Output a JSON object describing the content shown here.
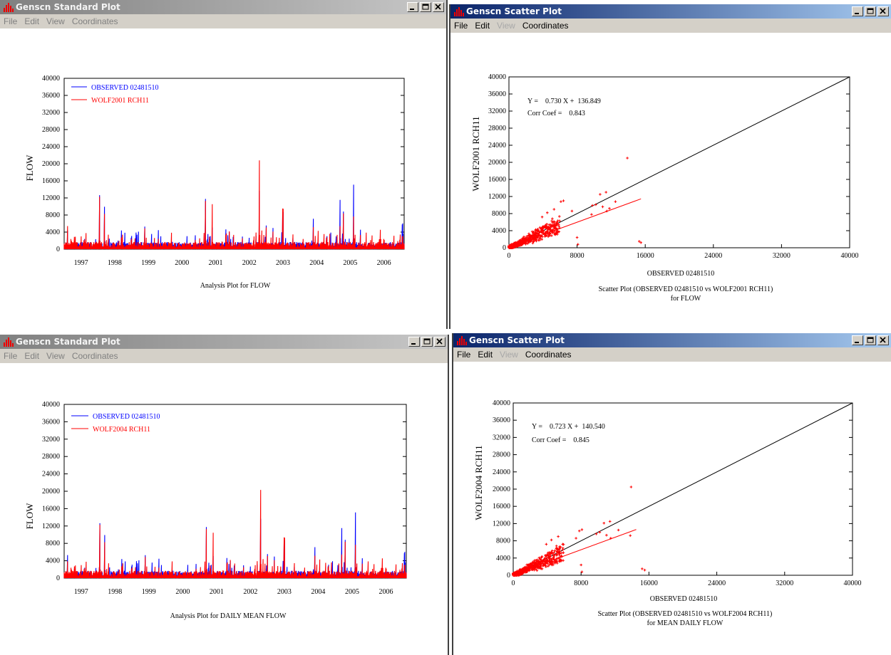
{
  "windows": [
    {
      "title": "Genscn Standard Plot",
      "active": false,
      "menu": [
        {
          "label": "File",
          "enabled": true
        },
        {
          "label": "Edit",
          "enabled": true
        },
        {
          "label": "View",
          "enabled": true
        },
        {
          "label": "Coordinates",
          "enabled": true
        }
      ],
      "plot": {
        "ylabel": "FLOW",
        "caption": "Analysis Plot for FLOW",
        "legend": [
          "OBSERVED 02481510",
          "WOLF2001 RCH11"
        ]
      }
    },
    {
      "title": "Genscn Scatter Plot",
      "active": true,
      "menu": [
        {
          "label": "File",
          "enabled": true
        },
        {
          "label": "Edit",
          "enabled": true
        },
        {
          "label": "View",
          "enabled": false
        },
        {
          "label": "Coordinates",
          "enabled": true
        }
      ],
      "plot": {
        "ylabel": "WOLF2001 RCH11",
        "xlabel": "OBSERVED 02481510",
        "caption_line1": "Scatter Plot (OBSERVED 02481510 vs WOLF2001 RCH11)",
        "caption_line2": "for  FLOW",
        "eq_line1": "Y =    0.730 X +  136.849",
        "eq_line2": "Corr Coef =    0.843"
      }
    },
    {
      "title": "Genscn Standard Plot",
      "active": false,
      "menu": [
        {
          "label": "File",
          "enabled": true
        },
        {
          "label": "Edit",
          "enabled": true
        },
        {
          "label": "View",
          "enabled": true
        },
        {
          "label": "Coordinates",
          "enabled": true
        }
      ],
      "plot": {
        "ylabel": "FLOW",
        "caption": "Analysis Plot for DAILY MEAN FLOW",
        "legend": [
          "OBSERVED 02481510",
          "WOLF2004 RCH11"
        ]
      }
    },
    {
      "title": "Genscn Scatter Plot",
      "active": true,
      "menu": [
        {
          "label": "File",
          "enabled": true
        },
        {
          "label": "Edit",
          "enabled": true
        },
        {
          "label": "View",
          "enabled": false
        },
        {
          "label": "Coordinates",
          "enabled": true
        }
      ],
      "plot": {
        "ylabel": "WOLF2004 RCH11",
        "xlabel": "OBSERVED 02481510",
        "caption_line1": "Scatter Plot (OBSERVED 02481510 vs WOLF2004 RCH11)",
        "caption_line2": "for MEAN DAILY FLOW",
        "eq_line1": "Y =    0.723 X +  140.540",
        "eq_line2": "Corr Coef =    0.845"
      }
    }
  ],
  "colors": {
    "observed": "#0000ff",
    "simulated": "#ff0000",
    "line": "#000000"
  },
  "chart_data": [
    {
      "type": "line",
      "ylim": [
        0,
        40000
      ],
      "yticks": [
        0,
        4000,
        8000,
        12000,
        16000,
        20000,
        24000,
        28000,
        32000,
        36000,
        40000
      ],
      "xticks": [
        "1997",
        "1998",
        "1999",
        "2000",
        "2001",
        "2002",
        "2003",
        "2004",
        "2005",
        "2006"
      ],
      "xlim": [
        1996.5,
        2006.6
      ],
      "series": [
        {
          "name": "OBSERVED 02481510",
          "peaks": [
            [
              1996.6,
              4500
            ],
            [
              1996.8,
              2200
            ],
            [
              1997.1,
              3000
            ],
            [
              1997.3,
              1800
            ],
            [
              1997.55,
              14200
            ],
            [
              1997.7,
              10800
            ],
            [
              1998.2,
              4800
            ],
            [
              1998.5,
              3800
            ],
            [
              1998.9,
              6300
            ],
            [
              1999.3,
              2000
            ],
            [
              1999.8,
              1500
            ],
            [
              2000.4,
              3800
            ],
            [
              2000.7,
              12300
            ],
            [
              2000.9,
              5200
            ],
            [
              2001.3,
              5500
            ],
            [
              2001.8,
              3500
            ],
            [
              2002.2,
              3200
            ],
            [
              2002.3,
              13800
            ],
            [
              2002.5,
              6000
            ],
            [
              2002.7,
              5800
            ],
            [
              2003.0,
              11500
            ],
            [
              2003.3,
              3000
            ],
            [
              2003.6,
              1600
            ],
            [
              2003.9,
              7600
            ],
            [
              2004.3,
              3800
            ],
            [
              2004.7,
              13600
            ],
            [
              2004.8,
              10000
            ],
            [
              2005.1,
              15400
            ],
            [
              2005.3,
              4800
            ],
            [
              2005.6,
              1600
            ],
            [
              2006.0,
              1800
            ],
            [
              2006.3,
              1400
            ],
            [
              2006.55,
              7800
            ]
          ]
        },
        {
          "name": "WOLF2001 RCH11",
          "peaks": [
            [
              1996.6,
              5600
            ],
            [
              1996.8,
              3200
            ],
            [
              1997.1,
              2800
            ],
            [
              1997.3,
              2100
            ],
            [
              1997.55,
              13800
            ],
            [
              1997.7,
              9000
            ],
            [
              1998.2,
              3000
            ],
            [
              1998.5,
              3000
            ],
            [
              1998.9,
              5800
            ],
            [
              1999.3,
              2500
            ],
            [
              1999.8,
              1500
            ],
            [
              2000.4,
              2500
            ],
            [
              2000.7,
              11800
            ],
            [
              2000.9,
              10800
            ],
            [
              2001.3,
              4000
            ],
            [
              2001.8,
              3000
            ],
            [
              2002.2,
              4000
            ],
            [
              2002.3,
              21000
            ],
            [
              2002.5,
              5500
            ],
            [
              2002.7,
              4800
            ],
            [
              2003.0,
              12500
            ],
            [
              2003.3,
              4000
            ],
            [
              2003.6,
              2500
            ],
            [
              2003.9,
              5500
            ],
            [
              2004.3,
              3500
            ],
            [
              2004.7,
              6400
            ],
            [
              2004.8,
              9500
            ],
            [
              2005.1,
              7800
            ],
            [
              2005.3,
              3500
            ],
            [
              2005.6,
              2500
            ],
            [
              2006.0,
              3000
            ],
            [
              2006.3,
              3500
            ],
            [
              2006.55,
              4000
            ]
          ]
        }
      ]
    },
    {
      "type": "scatter",
      "xlim": [
        0,
        40000
      ],
      "ylim": [
        0,
        40000
      ],
      "xticks": [
        0,
        8000,
        16000,
        24000,
        32000,
        40000
      ],
      "yticks": [
        0,
        4000,
        8000,
        12000,
        16000,
        20000,
        24000,
        28000,
        32000,
        36000,
        40000
      ],
      "regression": {
        "slope": 0.73,
        "intercept": 136.849,
        "xmax": 15500
      },
      "outliers": [
        [
          13900,
          21000
        ],
        [
          15500,
          1200
        ],
        [
          15300,
          1500
        ],
        [
          11400,
          13000
        ],
        [
          10700,
          12500
        ],
        [
          6100,
          10800
        ],
        [
          6400,
          11000
        ],
        [
          8100,
          800
        ],
        [
          8000,
          2400
        ],
        [
          9800,
          9900
        ],
        [
          11500,
          8600
        ],
        [
          11800,
          9200
        ],
        [
          9700,
          7800
        ],
        [
          10200,
          10100
        ],
        [
          12500,
          10800
        ],
        [
          11000,
          9600
        ],
        [
          5300,
          9000
        ],
        [
          5100,
          6800
        ],
        [
          4500,
          8200
        ],
        [
          3900,
          7200
        ],
        [
          2800,
          1100
        ],
        [
          7400,
          8600
        ]
      ]
    },
    {
      "type": "line",
      "ylim": [
        0,
        40000
      ],
      "yticks": [
        0,
        4000,
        8000,
        12000,
        16000,
        20000,
        24000,
        28000,
        32000,
        36000,
        40000
      ],
      "xticks": [
        "1997",
        "1998",
        "1999",
        "2000",
        "2001",
        "2002",
        "2003",
        "2004",
        "2005",
        "2006"
      ],
      "xlim": [
        1996.5,
        2006.6
      ],
      "series": [
        {
          "name": "OBSERVED 02481510",
          "peaks": [
            [
              1996.6,
              5500
            ],
            [
              1996.8,
              2400
            ],
            [
              1997.1,
              3000
            ],
            [
              1997.3,
              1800
            ],
            [
              1997.55,
              14200
            ],
            [
              1997.7,
              10800
            ],
            [
              1998.2,
              4800
            ],
            [
              1998.5,
              3800
            ],
            [
              1998.9,
              6300
            ],
            [
              1999.3,
              2000
            ],
            [
              1999.8,
              1500
            ],
            [
              2000.4,
              3800
            ],
            [
              2000.7,
              12300
            ],
            [
              2000.9,
              5200
            ],
            [
              2001.3,
              5500
            ],
            [
              2001.8,
              3500
            ],
            [
              2002.2,
              3200
            ],
            [
              2002.3,
              13800
            ],
            [
              2002.5,
              6000
            ],
            [
              2002.7,
              5800
            ],
            [
              2003.0,
              11500
            ],
            [
              2003.3,
              3000
            ],
            [
              2003.6,
              1600
            ],
            [
              2003.9,
              7600
            ],
            [
              2004.3,
              3800
            ],
            [
              2004.7,
              13600
            ],
            [
              2004.8,
              10000
            ],
            [
              2005.1,
              15400
            ],
            [
              2005.3,
              4800
            ],
            [
              2005.6,
              1600
            ],
            [
              2006.0,
              1800
            ],
            [
              2006.3,
              1400
            ],
            [
              2006.55,
              7800
            ]
          ]
        },
        {
          "name": "WOLF2004 RCH11",
          "peaks": [
            [
              1996.6,
              4000
            ],
            [
              1996.8,
              3000
            ],
            [
              1997.1,
              2800
            ],
            [
              1997.3,
              2100
            ],
            [
              1997.55,
              13800
            ],
            [
              1997.7,
              9000
            ],
            [
              1998.2,
              3000
            ],
            [
              1998.5,
              3000
            ],
            [
              1998.9,
              5800
            ],
            [
              1999.3,
              2500
            ],
            [
              1999.8,
              1500
            ],
            [
              2000.4,
              2500
            ],
            [
              2000.7,
              11800
            ],
            [
              2000.9,
              10700
            ],
            [
              2001.3,
              4000
            ],
            [
              2001.8,
              3000
            ],
            [
              2002.2,
              4000
            ],
            [
              2002.3,
              20500
            ],
            [
              2002.5,
              5500
            ],
            [
              2002.7,
              4800
            ],
            [
              2003.0,
              12300
            ],
            [
              2003.3,
              4000
            ],
            [
              2003.6,
              2500
            ],
            [
              2003.9,
              5500
            ],
            [
              2004.3,
              3500
            ],
            [
              2004.7,
              6400
            ],
            [
              2004.8,
              9500
            ],
            [
              2005.1,
              7800
            ],
            [
              2005.3,
              3500
            ],
            [
              2005.6,
              2500
            ],
            [
              2006.0,
              3000
            ],
            [
              2006.3,
              3500
            ],
            [
              2006.55,
              4000
            ]
          ]
        }
      ]
    },
    {
      "type": "scatter",
      "xlim": [
        0,
        40000
      ],
      "ylim": [
        0,
        40000
      ],
      "xticks": [
        0,
        8000,
        16000,
        24000,
        32000,
        40000
      ],
      "yticks": [
        0,
        4000,
        8000,
        12000,
        16000,
        20000,
        24000,
        28000,
        32000,
        36000,
        40000
      ],
      "regression": {
        "slope": 0.723,
        "intercept": 140.54,
        "xmax": 14500
      },
      "outliers": [
        [
          13900,
          20500
        ],
        [
          15500,
          1200
        ],
        [
          15200,
          1500
        ],
        [
          11400,
          12500
        ],
        [
          10700,
          12100
        ],
        [
          7800,
          10300
        ],
        [
          8100,
          10600
        ],
        [
          8100,
          800
        ],
        [
          8000,
          2400
        ],
        [
          9800,
          9600
        ],
        [
          11500,
          8600
        ],
        [
          13800,
          9200
        ],
        [
          12400,
          10500
        ],
        [
          10200,
          10000
        ],
        [
          11000,
          9300
        ],
        [
          5300,
          9000
        ],
        [
          5100,
          6800
        ],
        [
          4500,
          8200
        ],
        [
          3900,
          7200
        ],
        [
          2800,
          1100
        ],
        [
          7400,
          8600
        ]
      ]
    }
  ]
}
